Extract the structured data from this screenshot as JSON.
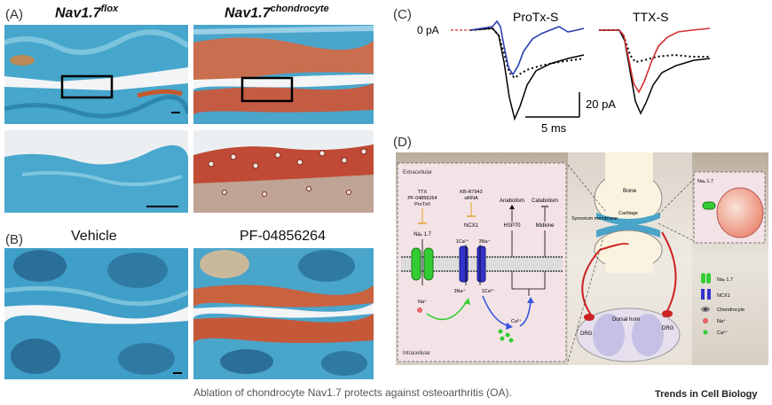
{
  "panels": {
    "A": {
      "label": "(A)",
      "title_left": "Nav1.7",
      "title_left_sup": "flox",
      "title_right": "Nav1.7",
      "title_right_sup": "chondrocyte"
    },
    "B": {
      "label": "(B)",
      "title_left": "Vehicle",
      "title_right": "PF-04856264"
    },
    "C": {
      "label": "(C)",
      "zero_label": "0 pA",
      "trace1_title": "ProTx-S",
      "trace2_title": "TTX-S",
      "scale_y": "20 pA",
      "scale_x": "5 ms"
    },
    "D": {
      "label": "(D)",
      "extracellular": "Extracellular",
      "intracellular": "Intracellular",
      "inhibitors_nav": [
        "TTX",
        "PF-04856264",
        "ProTxII"
      ],
      "nav_channel": "Naᵥ 1.7",
      "inhibitors_ncx": [
        "KB-R7943",
        "siRNA"
      ],
      "ncx_channel": "NCX1",
      "ion_ca_out": "1Ca²⁺",
      "ion_na_out": "3Na⁺",
      "ion_na_in": "Na⁺",
      "ion_3na_in": "3Na⁺",
      "ion_ca_in": "1Ca²⁺",
      "ion_ca_cyto": "Ca²⁺",
      "anabolism": "Anabolism",
      "catabolism": "Catabolism",
      "hsp70": "HSP70",
      "midkine": "Midkine",
      "bone": "Bone",
      "cartilage": "Cartilage",
      "synovium": "Synovium membrane",
      "dorsal_horn": "Dorsal horn",
      "drg_left": "DRG",
      "drg_right": "DRG",
      "inset_channel": "Naᵥ 1.7",
      "legend": [
        {
          "icon": "nav-channel",
          "label": "Naᵥ 1.7"
        },
        {
          "icon": "ncx-channel",
          "label": "NCX1"
        },
        {
          "icon": "chondrocyte",
          "label": "Chondrocyte"
        },
        {
          "icon": "na-ion",
          "label": "Na⁺"
        },
        {
          "icon": "ca-ion",
          "label": "Ca²⁺"
        }
      ]
    }
  },
  "caption": "Ablation of chondrocyte Nav1.7 protects against osteoarthritis (OA).",
  "journal": "Trends in Cell Biology",
  "colors": {
    "cartilage_blue": "#4aa3c9",
    "stain_red": "#c2533a",
    "protx_trace": "#2b3fb0",
    "ttx_trace": "#d43030",
    "nav_green": "#33cc33",
    "ncx_blue": "#3333cc"
  }
}
